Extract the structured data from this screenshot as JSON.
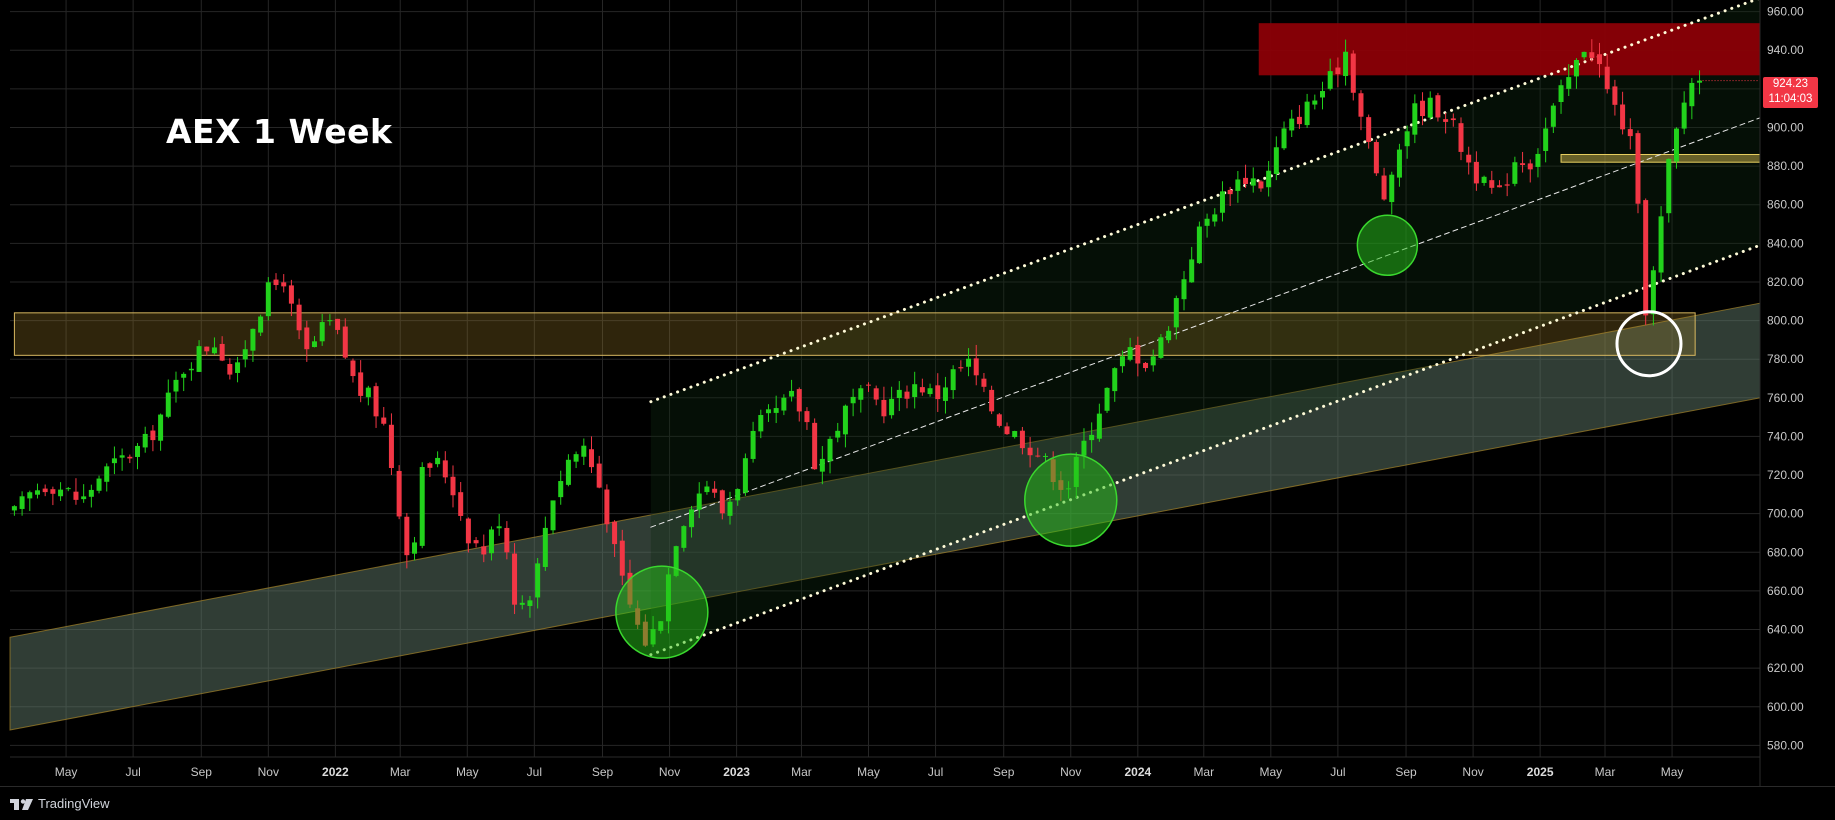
{
  "title": "AEX 1 Week",
  "brand": "TradingView",
  "last_price": {
    "value": "924.23",
    "countdown": "11:04:03"
  },
  "colors": {
    "background": "#000000",
    "up_candle": "#22d21c",
    "down_candle": "#f23645",
    "resistance_zone": "#8b0006",
    "support_zone": "#a8862a",
    "channel_fill": "#5f7a6a",
    "green_circle": "#27c21a",
    "white_circle": "#ffffff"
  },
  "chart_data": {
    "type": "candlestick",
    "title": "AEX 1 Week",
    "x_ticks": [
      {
        "label": "May",
        "date": "2021-05-01"
      },
      {
        "label": "Jul",
        "date": "2021-07-01"
      },
      {
        "label": "Sep",
        "date": "2021-09-01"
      },
      {
        "label": "Nov",
        "date": "2021-11-01"
      },
      {
        "label": "2022",
        "date": "2022-01-01",
        "year": true
      },
      {
        "label": "Mar",
        "date": "2022-03-01"
      },
      {
        "label": "May",
        "date": "2022-05-01"
      },
      {
        "label": "Jul",
        "date": "2022-07-01"
      },
      {
        "label": "Sep",
        "date": "2022-09-01"
      },
      {
        "label": "Nov",
        "date": "2022-11-01"
      },
      {
        "label": "2023",
        "date": "2023-01-01",
        "year": true
      },
      {
        "label": "Mar",
        "date": "2023-03-01"
      },
      {
        "label": "May",
        "date": "2023-05-01"
      },
      {
        "label": "Jul",
        "date": "2023-07-01"
      },
      {
        "label": "Sep",
        "date": "2023-09-01"
      },
      {
        "label": "Nov",
        "date": "2023-11-01"
      },
      {
        "label": "2024",
        "date": "2024-01-01",
        "year": true
      },
      {
        "label": "Mar",
        "date": "2024-03-01"
      },
      {
        "label": "May",
        "date": "2024-05-01"
      },
      {
        "label": "Jul",
        "date": "2024-07-01"
      },
      {
        "label": "Sep",
        "date": "2024-09-01"
      },
      {
        "label": "Nov",
        "date": "2024-11-01"
      },
      {
        "label": "2025",
        "date": "2025-01-01",
        "year": true
      },
      {
        "label": "Mar",
        "date": "2025-03-01"
      },
      {
        "label": "May",
        "date": "2025-05-01"
      }
    ],
    "y_ticks": [
      "960.00",
      "940.00",
      "920.00",
      "900.00",
      "880.00",
      "860.00",
      "840.00",
      "820.00",
      "800.00",
      "780.00",
      "760.00",
      "740.00",
      "720.00",
      "700.00",
      "680.00",
      "660.00",
      "640.00",
      "620.00",
      "600.00",
      "580.00"
    ],
    "ylim": [
      574,
      966
    ],
    "xlim": [
      "2021-03-11",
      "2025-07-20"
    ],
    "grid": true,
    "closes": [
      [
        "2021-03-15",
        700
      ],
      [
        "2021-04-01",
        712
      ],
      [
        "2021-04-15",
        716
      ],
      [
        "2021-05-01",
        712
      ],
      [
        "2021-05-15",
        706
      ],
      [
        "2021-06-01",
        720
      ],
      [
        "2021-06-15",
        726
      ],
      [
        "2021-07-01",
        732
      ],
      [
        "2021-07-15",
        738
      ],
      [
        "2021-08-01",
        758
      ],
      [
        "2021-08-15",
        775
      ],
      [
        "2021-09-01",
        785
      ],
      [
        "2021-09-15",
        790
      ],
      [
        "2021-10-01",
        768
      ],
      [
        "2021-10-15",
        795
      ],
      [
        "2021-11-01",
        815
      ],
      [
        "2021-11-15",
        822
      ],
      [
        "2021-11-25",
        798
      ],
      [
        "2021-12-05",
        782
      ],
      [
        "2021-12-15",
        790
      ],
      [
        "2021-12-25",
        800
      ],
      [
        "2022-01-05",
        790
      ],
      [
        "2022-01-20",
        765
      ],
      [
        "2022-02-01",
        760
      ],
      [
        "2022-02-15",
        745
      ],
      [
        "2022-03-01",
        700
      ],
      [
        "2022-03-10",
        670
      ],
      [
        "2022-03-20",
        720
      ],
      [
        "2022-04-01",
        728
      ],
      [
        "2022-04-15",
        718
      ],
      [
        "2022-05-01",
        690
      ],
      [
        "2022-05-15",
        680
      ],
      [
        "2022-06-01",
        700
      ],
      [
        "2022-06-15",
        650
      ],
      [
        "2022-07-01",
        663
      ],
      [
        "2022-07-15",
        706
      ],
      [
        "2022-08-01",
        728
      ],
      [
        "2022-08-15",
        735
      ],
      [
        "2022-09-01",
        710
      ],
      [
        "2022-09-15",
        672
      ],
      [
        "2022-10-01",
        644
      ],
      [
        "2022-10-12",
        632
      ],
      [
        "2022-10-25",
        650
      ],
      [
        "2022-11-05",
        685
      ],
      [
        "2022-11-20",
        706
      ],
      [
        "2022-12-05",
        716
      ],
      [
        "2022-12-20",
        700
      ],
      [
        "2023-01-05",
        720
      ],
      [
        "2023-01-20",
        745
      ],
      [
        "2023-02-05",
        752
      ],
      [
        "2023-02-20",
        760
      ],
      [
        "2023-03-05",
        750
      ],
      [
        "2023-03-15",
        722
      ],
      [
        "2023-03-30",
        742
      ],
      [
        "2023-04-15",
        758
      ],
      [
        "2023-05-01",
        762
      ],
      [
        "2023-05-15",
        755
      ],
      [
        "2023-06-01",
        762
      ],
      [
        "2023-06-15",
        768
      ],
      [
        "2023-07-01",
        760
      ],
      [
        "2023-07-15",
        772
      ],
      [
        "2023-08-01",
        778
      ],
      [
        "2023-08-15",
        760
      ],
      [
        "2023-09-01",
        745
      ],
      [
        "2023-09-15",
        740
      ],
      [
        "2023-10-01",
        732
      ],
      [
        "2023-10-15",
        722
      ],
      [
        "2023-10-28",
        712
      ],
      [
        "2023-11-10",
        732
      ],
      [
        "2023-11-25",
        752
      ],
      [
        "2023-12-10",
        772
      ],
      [
        "2023-12-25",
        785
      ],
      [
        "2024-01-10",
        778
      ],
      [
        "2024-01-25",
        792
      ],
      [
        "2024-02-10",
        820
      ],
      [
        "2024-02-25",
        845
      ],
      [
        "2024-03-10",
        858
      ],
      [
        "2024-03-25",
        870
      ],
      [
        "2024-04-10",
        875
      ],
      [
        "2024-04-25",
        870
      ],
      [
        "2024-05-10",
        895
      ],
      [
        "2024-05-25",
        905
      ],
      [
        "2024-06-10",
        915
      ],
      [
        "2024-06-25",
        925
      ],
      [
        "2024-07-08",
        940
      ],
      [
        "2024-07-20",
        910
      ],
      [
        "2024-08-05",
        875
      ],
      [
        "2024-08-15",
        860
      ],
      [
        "2024-08-28",
        895
      ],
      [
        "2024-09-10",
        910
      ],
      [
        "2024-09-25",
        912
      ],
      [
        "2024-10-10",
        905
      ],
      [
        "2024-10-25",
        885
      ],
      [
        "2024-11-10",
        870
      ],
      [
        "2024-11-25",
        865
      ],
      [
        "2024-12-10",
        885
      ],
      [
        "2024-12-25",
        882
      ],
      [
        "2025-01-10",
        905
      ],
      [
        "2025-01-22",
        920
      ],
      [
        "2025-02-01",
        930
      ],
      [
        "2025-02-12",
        945
      ],
      [
        "2025-02-22",
        935
      ],
      [
        "2025-03-05",
        915
      ],
      [
        "2025-03-15",
        905
      ],
      [
        "2025-03-25",
        890
      ],
      [
        "2025-04-01",
        850
      ],
      [
        "2025-04-08",
        800
      ],
      [
        "2025-04-18",
        840
      ],
      [
        "2025-04-28",
        880
      ],
      [
        "2025-05-08",
        905
      ],
      [
        "2025-05-18",
        925
      ],
      [
        "2025-05-26",
        924.23
      ]
    ],
    "zones": [
      {
        "type": "resistance",
        "from": "2024-04-20",
        "to": "2025-07-20",
        "low": 927,
        "high": 954
      },
      {
        "type": "support",
        "from": "2021-03-15",
        "to": "2025-05-22",
        "low": 782,
        "high": 804
      },
      {
        "type": "support-small",
        "from": "2025-01-20",
        "to": "2025-07-20",
        "low": 882,
        "high": 886
      }
    ],
    "channel_band": {
      "from": "2021-03-11",
      "to": "2025-07-20",
      "upper": [
        636,
        809
      ],
      "lower": [
        588,
        760
      ]
    },
    "trend_lines": [
      {
        "style": "dotted",
        "from": [
          "2022-10-15",
          758
        ],
        "to": [
          "2025-07-20",
          967
        ]
      },
      {
        "style": "dashed",
        "from": [
          "2022-10-15",
          693
        ],
        "to": [
          "2025-07-20",
          905
        ]
      },
      {
        "style": "dotted",
        "from": [
          "2022-10-15",
          627
        ],
        "to": [
          "2025-07-20",
          839
        ]
      }
    ],
    "markers": [
      {
        "color": "green",
        "date": "2022-10-25",
        "price": 649
      },
      {
        "color": "green",
        "date": "2023-11-01",
        "price": 707
      },
      {
        "color": "green",
        "date": "2024-08-15",
        "price": 839
      },
      {
        "color": "white",
        "date": "2025-04-10",
        "price": 788
      }
    ]
  }
}
